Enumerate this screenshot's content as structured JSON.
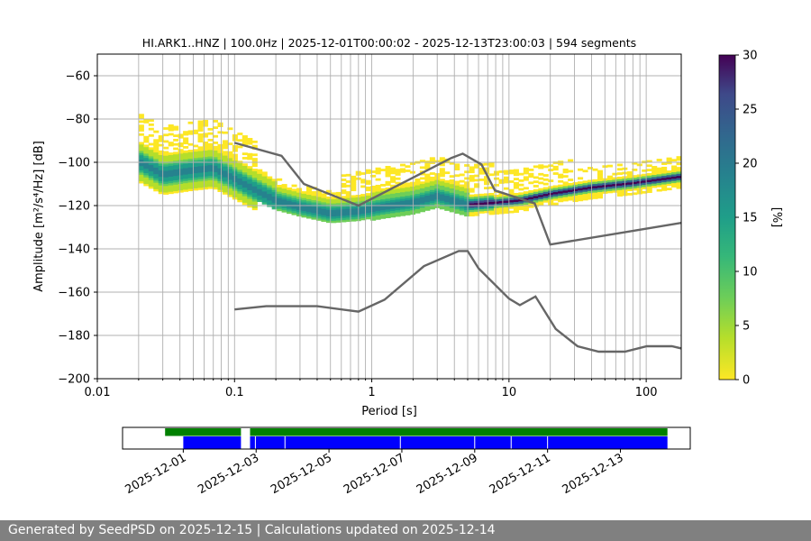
{
  "chart_data": {
    "type": "heatmap",
    "title": "HI.ARK1..HNZ | 100.0Hz | 2025-12-01T00:00:02 - 2025-12-13T23:00:03 | 594 segments",
    "xlabel": "Period [s]",
    "ylabel": "Amplitude [m²/s⁴/Hz] [dB]",
    "x_scale": "log",
    "xlim": [
      0.01,
      180
    ],
    "ylim": [
      -200,
      -50
    ],
    "xticks": [
      "0.01",
      "0.1",
      "1",
      "10",
      "100"
    ],
    "yticks": [
      "−60",
      "−80",
      "−100",
      "−120",
      "−140",
      "−160",
      "−180",
      "−200"
    ],
    "grid": true,
    "colorbar": {
      "label": "[%]",
      "range": [
        0,
        30
      ],
      "ticks": [
        "0",
        "5",
        "10",
        "15",
        "20",
        "25",
        "30"
      ],
      "colormap": "viridis_r"
    },
    "mode_curve": [
      [
        0.02,
        -100
      ],
      [
        0.03,
        -106
      ],
      [
        0.05,
        -104
      ],
      [
        0.07,
        -103
      ],
      [
        0.1,
        -108
      ],
      [
        0.15,
        -114
      ],
      [
        0.2,
        -118
      ],
      [
        0.3,
        -121
      ],
      [
        0.5,
        -124
      ],
      [
        0.8,
        -123
      ],
      [
        1.2,
        -121
      ],
      [
        2,
        -119
      ],
      [
        3,
        -116
      ],
      [
        5,
        -120
      ],
      [
        8,
        -119
      ],
      [
        12,
        -118
      ],
      [
        20,
        -115
      ],
      [
        40,
        -112
      ],
      [
        80,
        -110
      ],
      [
        180,
        -107
      ]
    ],
    "nhnm": [
      [
        0.1,
        -91
      ],
      [
        0.22,
        -97
      ],
      [
        0.32,
        -110
      ],
      [
        0.8,
        -120
      ],
      [
        3.8,
        -98
      ],
      [
        4.6,
        -96
      ],
      [
        6.3,
        -101
      ],
      [
        7.9,
        -113
      ],
      [
        15.4,
        -119
      ],
      [
        20,
        -138
      ],
      [
        180,
        -128
      ]
    ],
    "nlnm": [
      [
        0.1,
        -168
      ],
      [
        0.17,
        -166.5
      ],
      [
        0.4,
        -166.5
      ],
      [
        0.8,
        -169
      ],
      [
        1.24,
        -163.5
      ],
      [
        2.4,
        -148
      ],
      [
        4.3,
        -141
      ],
      [
        5,
        -141
      ],
      [
        6,
        -149
      ],
      [
        10,
        -163
      ],
      [
        12,
        -166
      ],
      [
        15.6,
        -162
      ],
      [
        21.9,
        -177
      ],
      [
        31.6,
        -185
      ],
      [
        45,
        -187.5
      ],
      [
        70,
        -187.5
      ],
      [
        101,
        -185
      ],
      [
        154,
        -185
      ],
      [
        180,
        -186
      ]
    ],
    "coverage": {
      "date_ticks": [
        "2025-12-01",
        "2025-12-03",
        "2025-12-05",
        "2025-12-07",
        "2025-12-09",
        "2025-12-11",
        "2025-12-13"
      ],
      "data_available": [
        [
          "2025-11-30T12:00",
          "2025-12-02T14:00"
        ],
        [
          "2025-12-02T20:00",
          "2025-12-14T07:00"
        ]
      ],
      "psd_segments": [
        [
          "2025-12-01T00:00",
          "2025-12-02T14:00"
        ],
        [
          "2025-12-02T20:00",
          "2025-12-14T07:00"
        ]
      ],
      "gaps": [
        "2025-12-02T23:30",
        "2025-12-03T19:00",
        "2025-12-06T23:00",
        "2025-12-09T00:00",
        "2025-12-10T00:00",
        "2025-12-11T00:00"
      ]
    }
  },
  "footer": {
    "text": "Generated by SeedPSD on 2025-12-15 | Calculations updated on 2025-12-14"
  }
}
